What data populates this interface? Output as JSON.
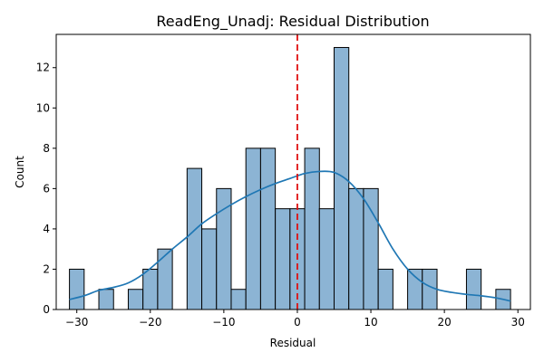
{
  "chart_data": {
    "type": "bar",
    "title": "ReadEng_Unadj: Residual Distribution",
    "xlabel": "Residual",
    "ylabel": "Count",
    "xlim": [
      -32.8,
      31.7
    ],
    "ylim": [
      0,
      13.65
    ],
    "x_ticks": [
      -30,
      -20,
      -10,
      0,
      10,
      20,
      30
    ],
    "y_ticks": [
      0,
      2,
      4,
      6,
      8,
      10,
      12
    ],
    "grid": false,
    "bins": [
      {
        "x0": -31.0,
        "x1": -29.0,
        "count": 2
      },
      {
        "x0": -29.0,
        "x1": -27.0,
        "count": 0
      },
      {
        "x0": -27.0,
        "x1": -25.0,
        "count": 1
      },
      {
        "x0": -25.0,
        "x1": -23.0,
        "count": 0
      },
      {
        "x0": -23.0,
        "x1": -21.0,
        "count": 1
      },
      {
        "x0": -21.0,
        "x1": -19.0,
        "count": 2
      },
      {
        "x0": -19.0,
        "x1": -17.0,
        "count": 3
      },
      {
        "x0": -17.0,
        "x1": -15.0,
        "count": 0
      },
      {
        "x0": -15.0,
        "x1": -13.0,
        "count": 7
      },
      {
        "x0": -13.0,
        "x1": -11.0,
        "count": 4
      },
      {
        "x0": -11.0,
        "x1": -9.0,
        "count": 6
      },
      {
        "x0": -9.0,
        "x1": -7.0,
        "count": 1
      },
      {
        "x0": -7.0,
        "x1": -5.0,
        "count": 8
      },
      {
        "x0": -5.0,
        "x1": -3.0,
        "count": 8
      },
      {
        "x0": -3.0,
        "x1": -1.0,
        "count": 5
      },
      {
        "x0": -1.0,
        "x1": 1.0,
        "count": 5
      },
      {
        "x0": 1.0,
        "x1": 3.0,
        "count": 8
      },
      {
        "x0": 3.0,
        "x1": 5.0,
        "count": 5
      },
      {
        "x0": 5.0,
        "x1": 7.0,
        "count": 13
      },
      {
        "x0": 7.0,
        "x1": 9.0,
        "count": 6
      },
      {
        "x0": 9.0,
        "x1": 11.0,
        "count": 6
      },
      {
        "x0": 11.0,
        "x1": 13.0,
        "count": 2
      },
      {
        "x0": 13.0,
        "x1": 15.0,
        "count": 0
      },
      {
        "x0": 15.0,
        "x1": 17.0,
        "count": 2
      },
      {
        "x0": 17.0,
        "x1": 19.0,
        "count": 2
      },
      {
        "x0": 19.0,
        "x1": 21.0,
        "count": 0
      },
      {
        "x0": 21.0,
        "x1": 23.0,
        "count": 0
      },
      {
        "x0": 23.0,
        "x1": 25.0,
        "count": 2
      },
      {
        "x0": 25.0,
        "x1": 27.0,
        "count": 0
      },
      {
        "x0": 27.0,
        "x1": 29.0,
        "count": 1
      }
    ],
    "kde": {
      "x": [
        -31,
        -29,
        -27,
        -25,
        -23,
        -21,
        -19,
        -17,
        -15,
        -13,
        -11,
        -9,
        -7,
        -5,
        -3,
        -1,
        1,
        3,
        5,
        7,
        9,
        11,
        13,
        15,
        17,
        19,
        21,
        23,
        25,
        27,
        29
      ],
      "y": [
        0.5,
        0.68,
        0.95,
        1.1,
        1.32,
        1.75,
        2.35,
        3.0,
        3.6,
        4.25,
        4.75,
        5.2,
        5.6,
        5.95,
        6.25,
        6.5,
        6.75,
        6.85,
        6.8,
        6.35,
        5.5,
        4.3,
        3.0,
        2.0,
        1.35,
        1.0,
        0.85,
        0.75,
        0.68,
        0.58,
        0.42
      ]
    },
    "reference_line": {
      "x": 0,
      "style": "dashed"
    },
    "colors": {
      "bar_fill": "#8cb4d4",
      "bar_edge": "#000000",
      "kde": "#1f77b4",
      "reference_line": "#e01010"
    }
  }
}
